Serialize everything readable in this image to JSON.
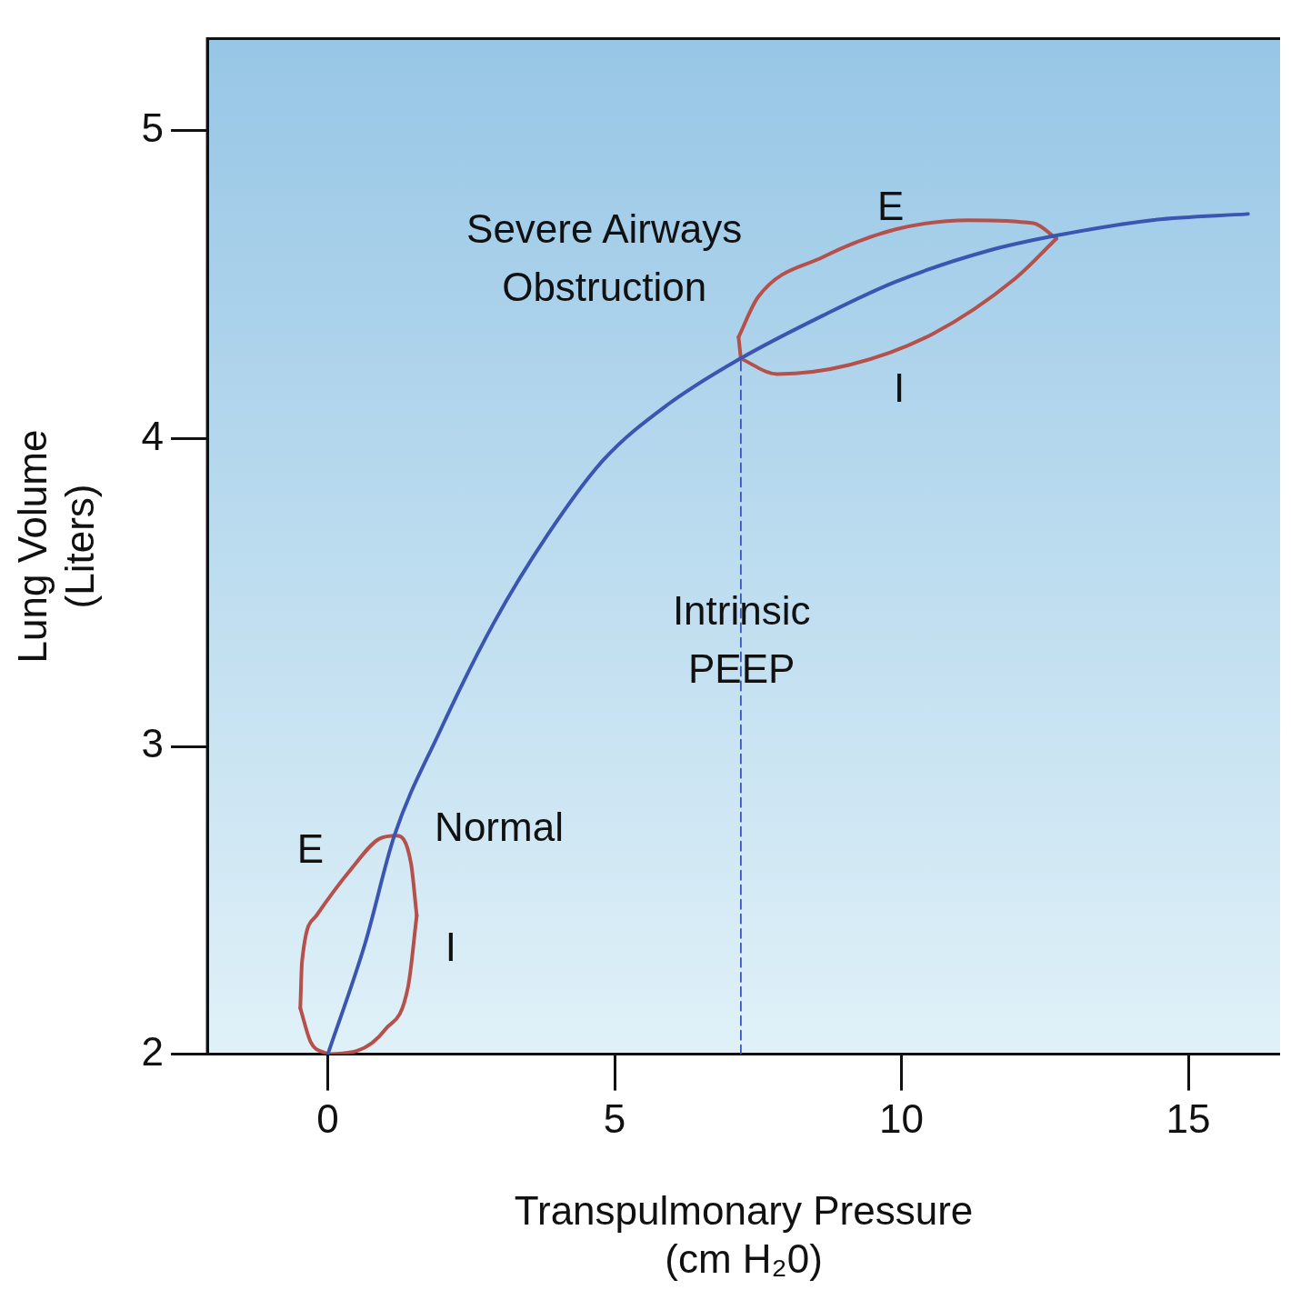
{
  "chart_data": {
    "type": "line",
    "xlabel": "Transpulmonary Pressure\n(cm H₂0)",
    "ylabel": "Lung Volume\n(Liters)",
    "xlim": [
      -2.1,
      16.6
    ],
    "ylim": [
      2,
      5.3
    ],
    "xticks": [
      0,
      5,
      10,
      15
    ],
    "yticks": [
      2,
      3,
      4,
      5
    ],
    "grid": false,
    "legend": false,
    "marker": "none",
    "series": [
      {
        "color": "#3a56b0",
        "x": [
          0,
          0.65,
          1.16,
          1.93,
          2.89,
          3.84,
          4.8,
          5.92,
          7.19,
          8.63,
          9.9,
          11.5,
          12.7,
          14.37,
          16.04
        ],
        "values": [
          2,
          2.36,
          2.71,
          3.04,
          3.4,
          3.69,
          3.93,
          4.11,
          4.26,
          4.4,
          4.51,
          4.61,
          4.66,
          4.71,
          4.73
        ]
      },
      {
        "color": "#b5504a",
        "x": [
          0,
          0.5,
          1.0,
          1.4,
          1.55
        ],
        "values": [
          2,
          2.01,
          2.08,
          2.22,
          2.45
        ]
      },
      {
        "color": "#b5504a",
        "x": [
          -0.48,
          -0.45,
          -0.2,
          0.4,
          0.9,
          1.2,
          1.45,
          1.55
        ],
        "values": [
          2.15,
          2.3,
          2.45,
          2.6,
          2.7,
          2.71,
          2.62,
          2.45
        ]
      },
      {
        "color": "#b5504a",
        "x": [
          -0.48,
          -0.3,
          0
        ],
        "values": [
          2.15,
          2.04,
          2
        ]
      },
      {
        "color": "#b5504a",
        "x": [
          7.2,
          7.83,
          9.1,
          10.54,
          11.98,
          12.7
        ],
        "values": [
          4.26,
          4.21,
          4.24,
          4.34,
          4.52,
          4.65
        ]
      },
      {
        "color": "#b5504a",
        "x": [
          7.16,
          7.5,
          8.63,
          9.9,
          11.18,
          12.3,
          12.7
        ],
        "values": [
          4.33,
          4.46,
          4.59,
          4.68,
          4.71,
          4.7,
          4.65
        ]
      },
      {
        "color": "#b5504a",
        "x": [
          7.16,
          7.2
        ],
        "values": [
          4.33,
          4.26
        ]
      },
      {
        "color": "#3a56b0",
        "line_style": "dashed",
        "x": [
          7.2,
          7.2
        ],
        "values": [
          2,
          4.26
        ]
      }
    ],
    "annotations": [
      "Severe Airways\nObstruction",
      "E",
      "I",
      "Intrinsic\nPEEP",
      "Normal",
      "E",
      "I"
    ]
  }
}
